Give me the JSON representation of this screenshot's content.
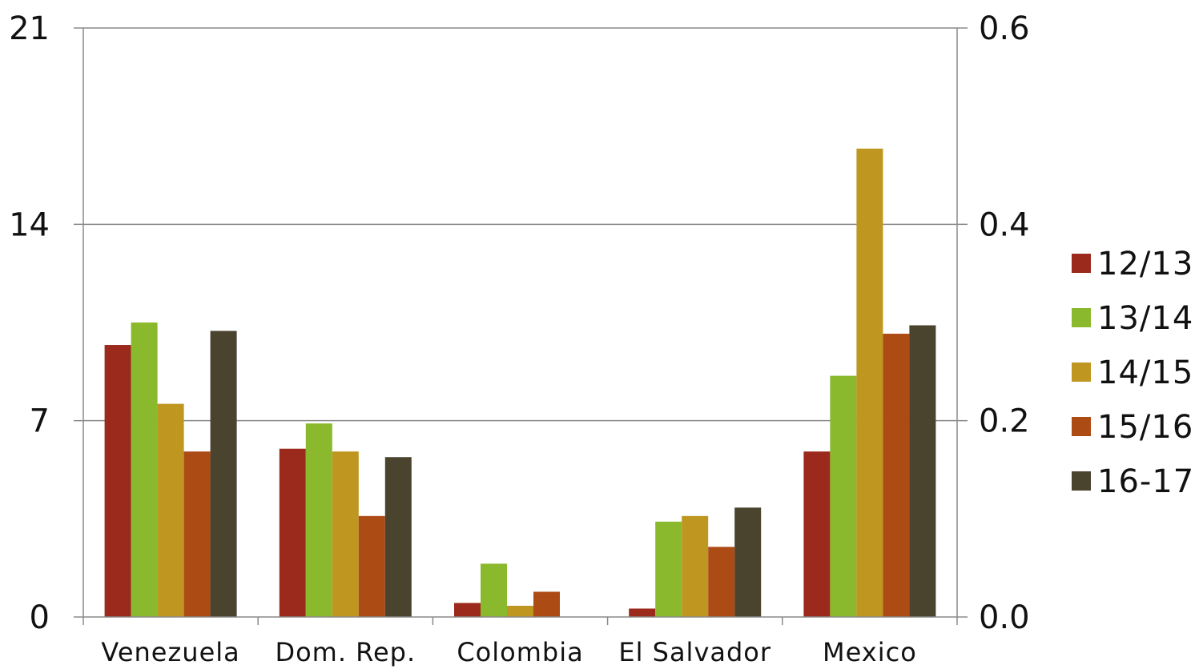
{
  "chart_data": {
    "type": "bar",
    "title": "",
    "xlabel": "",
    "ylabel": "",
    "categories": [
      "Venezuela",
      "Dom. Rep.",
      "Colombia",
      "El Salvador",
      "Mexico"
    ],
    "series": [
      {
        "name": "12/13",
        "color": "#9b2a1c",
        "values": [
          9.7,
          6.0,
          0.5,
          0.3,
          5.9
        ]
      },
      {
        "name": "13/14",
        "color": "#8bb92d",
        "values": [
          10.5,
          6.9,
          1.9,
          3.4,
          8.6
        ]
      },
      {
        "name": "14/15",
        "color": "#bf9620",
        "values": [
          7.6,
          5.9,
          0.4,
          3.6,
          16.7
        ]
      },
      {
        "name": "15/16",
        "color": "#ad4b15",
        "values": [
          5.9,
          3.6,
          0.9,
          2.5,
          10.1
        ]
      },
      {
        "name": "16-17",
        "color": "#4a432e",
        "values": [
          10.2,
          5.7,
          0,
          3.9,
          10.4
        ]
      }
    ],
    "ylim": [
      0,
      21
    ],
    "y2lim": [
      0,
      0.6
    ],
    "yticks": [
      "0",
      "7",
      "14",
      "21"
    ],
    "y2ticks": [
      "0.0",
      "0.2",
      "0.4",
      "0.6"
    ],
    "grid": true,
    "legend_position": "right"
  }
}
